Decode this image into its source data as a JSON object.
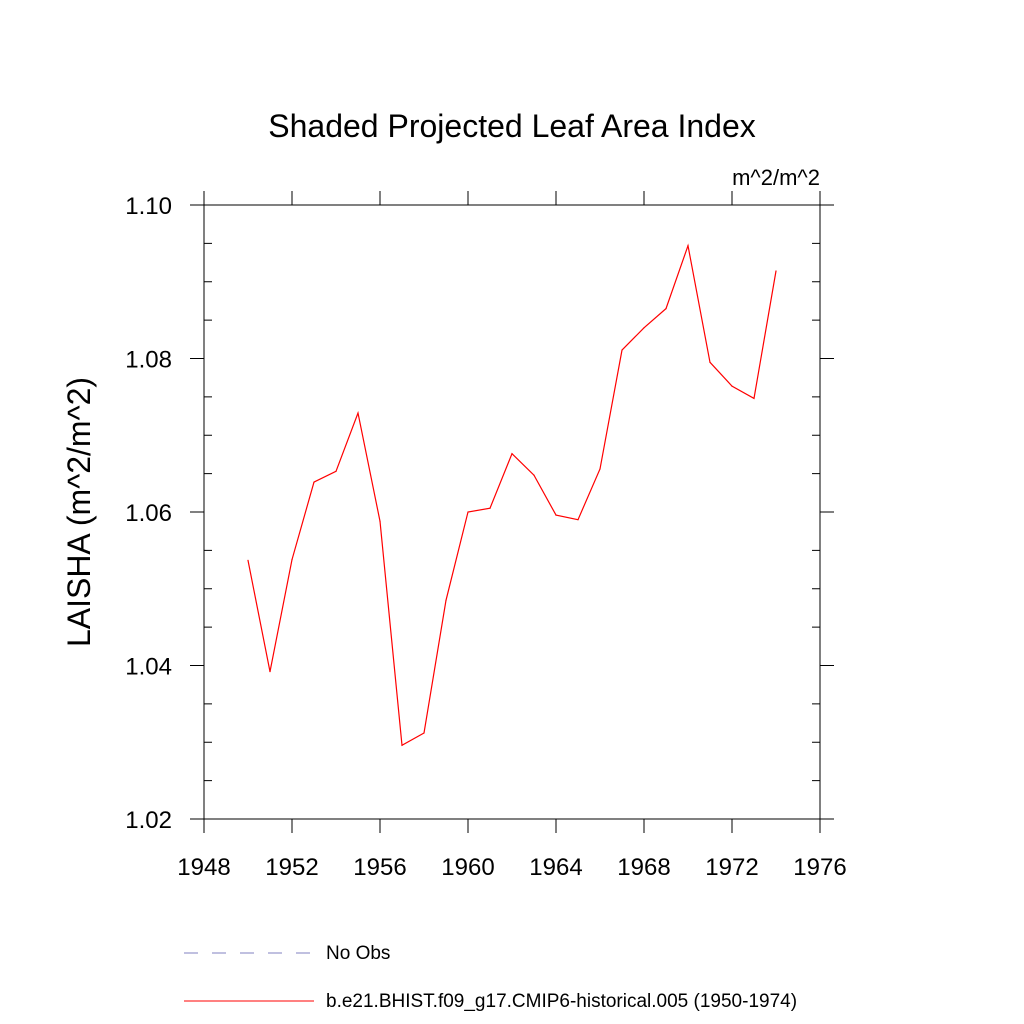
{
  "chart_data": {
    "type": "line",
    "title": "Shaded Projected Leaf Area Index",
    "units": "m^2/m^2",
    "ylabel": "LAISHA  (m^2/m^2)",
    "xlabel": "",
    "xlim": [
      1948,
      1976
    ],
    "ylim": [
      1.02,
      1.1
    ],
    "x_ticks": [
      1948,
      1952,
      1956,
      1960,
      1964,
      1968,
      1972,
      1976
    ],
    "x_tick_labels": [
      "1948",
      "1952",
      "1956",
      "1960",
      "1964",
      "1968",
      "1972",
      "1976"
    ],
    "y_ticks": [
      1.02,
      1.04,
      1.06,
      1.08,
      1.1
    ],
    "y_tick_labels": [
      "1.02",
      "1.04",
      "1.06",
      "1.08",
      "1.10"
    ],
    "series": [
      {
        "name": "b.e21.BHIST.f09_g17.CMIP6-historical.005 (1950-1974)",
        "color": "#ff0000",
        "x": [
          1950,
          1951,
          1952,
          1953,
          1954,
          1955,
          1956,
          1957,
          1958,
          1959,
          1960,
          1961,
          1962,
          1963,
          1964,
          1965,
          1966,
          1967,
          1968,
          1969,
          1970,
          1971,
          1972,
          1973,
          1974
        ],
        "values": [
          1.0537,
          1.0392,
          1.0538,
          1.0639,
          1.0653,
          1.0729,
          1.0588,
          1.0296,
          1.0312,
          1.0485,
          1.06,
          1.0605,
          1.0676,
          1.0648,
          1.0596,
          1.059,
          1.0656,
          1.0811,
          1.084,
          1.0865,
          1.0947,
          1.0795,
          1.0764,
          1.0748,
          1.0914
        ]
      }
    ],
    "legend": [
      {
        "label": "No Obs",
        "style": "dashed",
        "color": "#8080c0"
      },
      {
        "label": "b.e21.BHIST.f09_g17.CMIP6-historical.005 (1950-1974)",
        "style": "solid",
        "color": "#ff0000"
      }
    ]
  }
}
